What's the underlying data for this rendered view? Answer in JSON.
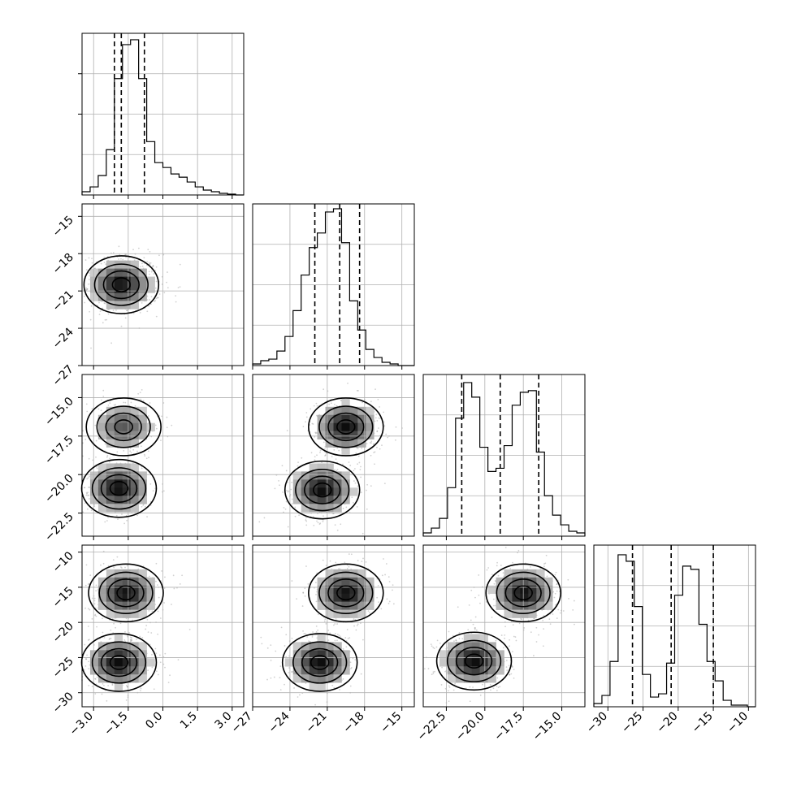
{
  "chart_data": {
    "type": "corner",
    "parameters": 4,
    "axes": [
      {
        "range": [
          -3.5,
          3.5
        ],
        "ticks": [
          -3.0,
          -1.5,
          0.0,
          1.5,
          3.0
        ],
        "tick_labels": [
          "−3.0",
          "−1.5",
          "0.0",
          "1.5",
          "3.0"
        ]
      },
      {
        "range": [
          -27,
          -14
        ],
        "ticks": [
          -27,
          -24,
          -21,
          -18,
          -15
        ],
        "tick_labels": [
          "−27",
          "−24",
          "−21",
          "−18",
          "−15"
        ]
      },
      {
        "range": [
          -24,
          -13.5
        ],
        "ticks": [
          -22.5,
          -20.0,
          -17.5,
          -15.0
        ],
        "tick_labels": [
          "−22.5",
          "−20.0",
          "−17.5",
          "−15.0"
        ]
      },
      {
        "range": [
          -32,
          -9
        ],
        "ticks": [
          -30,
          -25,
          -20,
          -15,
          -10
        ],
        "tick_labels": [
          "−30",
          "−25",
          "−20",
          "−15",
          "−10"
        ]
      }
    ],
    "histograms": [
      {
        "heights": [
          0.02,
          0.05,
          0.12,
          0.28,
          0.72,
          0.93,
          0.96,
          0.72,
          0.33,
          0.2,
          0.17,
          0.13,
          0.11,
          0.08,
          0.05,
          0.03,
          0.02,
          0.01,
          0.005,
          0
        ],
        "quantiles": [
          -2.1,
          -1.8,
          -0.8
        ]
      },
      {
        "heights": [
          0.01,
          0.03,
          0.04,
          0.09,
          0.18,
          0.34,
          0.56,
          0.73,
          0.82,
          0.95,
          0.97,
          0.76,
          0.4,
          0.22,
          0.1,
          0.05,
          0.02,
          0.01,
          0,
          0
        ],
        "quantiles": [
          -22.0,
          -20.0,
          -18.4
        ]
      },
      {
        "heights": [
          0.02,
          0.05,
          0.11,
          0.3,
          0.73,
          0.95,
          0.86,
          0.55,
          0.4,
          0.42,
          0.56,
          0.81,
          0.89,
          0.9,
          0.52,
          0.25,
          0.13,
          0.07,
          0.03,
          0.02
        ],
        "quantiles": [
          -21.5,
          -19.0,
          -16.5
        ]
      },
      {
        "heights": [
          0.02,
          0.07,
          0.28,
          0.94,
          0.9,
          0.62,
          0.2,
          0.06,
          0.08,
          0.27,
          0.69,
          0.87,
          0.85,
          0.51,
          0.28,
          0.16,
          0.04,
          0.01,
          0.01,
          0
        ],
        "quantiles": [
          -26.5,
          -21.0,
          -15.0
        ]
      }
    ],
    "pair_panels": [
      {
        "row": 1,
        "col": 0,
        "modes": [
          {
            "x": -1.8,
            "y": -20.5,
            "weight": 1.0
          }
        ]
      },
      {
        "row": 2,
        "col": 0,
        "modes": [
          {
            "x": -1.7,
            "y": -16.9,
            "weight": 0.7
          },
          {
            "x": -1.9,
            "y": -20.9,
            "weight": 1.0
          }
        ]
      },
      {
        "row": 2,
        "col": 1,
        "modes": [
          {
            "x": -21.4,
            "y": -21.0,
            "weight": 1.0
          },
          {
            "x": -19.5,
            "y": -16.9,
            "weight": 1.0
          }
        ]
      },
      {
        "row": 3,
        "col": 0,
        "modes": [
          {
            "x": -1.6,
            "y": -15.8,
            "weight": 1.0
          },
          {
            "x": -1.9,
            "y": -25.7,
            "weight": 1.0
          }
        ]
      },
      {
        "row": 3,
        "col": 1,
        "modes": [
          {
            "x": -19.5,
            "y": -15.8,
            "weight": 1.0
          },
          {
            "x": -21.6,
            "y": -25.7,
            "weight": 1.0
          }
        ]
      },
      {
        "row": 3,
        "col": 2,
        "modes": [
          {
            "x": -17.5,
            "y": -15.8,
            "weight": 1.0
          },
          {
            "x": -20.7,
            "y": -25.5,
            "weight": 1.0
          }
        ]
      }
    ],
    "grid": true,
    "quantile_line_style": "dashed",
    "contour_levels": 4
  }
}
